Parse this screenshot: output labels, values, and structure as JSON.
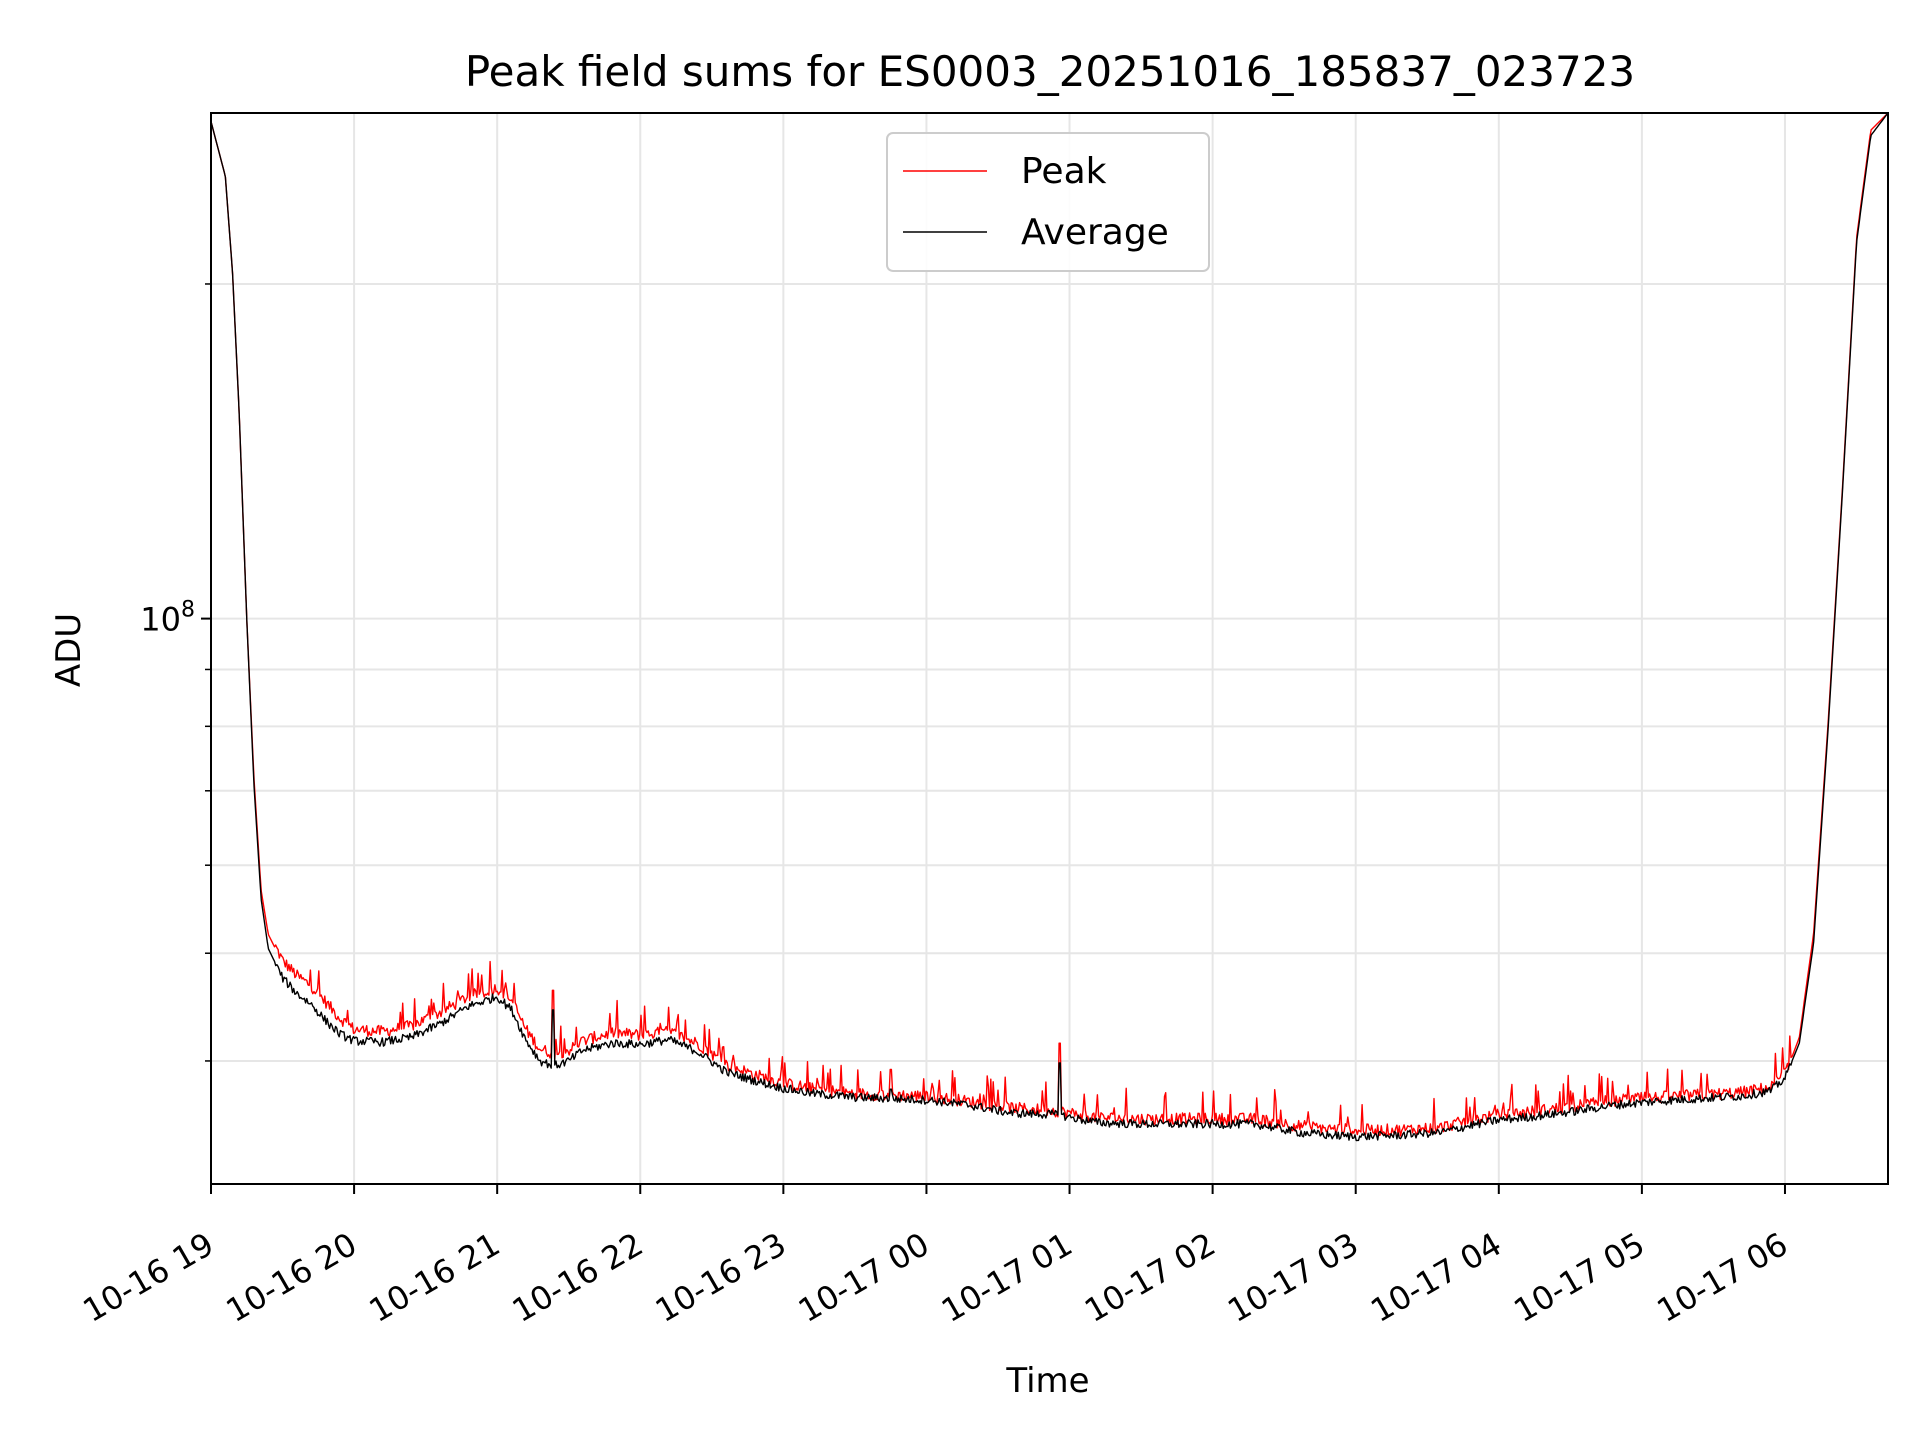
{
  "chart_data": {
    "type": "line",
    "title": "Peak field sums for ES0003_20251016_185837_023723",
    "xlabel": "Time",
    "ylabel": "ADU",
    "yscale": "log",
    "ylim": [
      31000000,
      285000000
    ],
    "xlim": [
      0,
      11.72
    ],
    "grid": true,
    "legend_position": "top-center",
    "x_tick_labels": [
      "10-16 19",
      "10-16 20",
      "10-16 21",
      "10-16 22",
      "10-16 23",
      "10-17 00",
      "10-17 01",
      "10-17 02",
      "10-17 03",
      "10-17 04",
      "10-17 05",
      "10-17 06"
    ],
    "y_major_tick": {
      "base": "10",
      "exponent": "8"
    },
    "series": [
      {
        "name": "Peak",
        "color": "#ff0000",
        "points": [
          [
            0.0,
            280000000
          ],
          [
            0.1,
            250000000
          ],
          [
            0.15,
            205000000
          ],
          [
            0.2,
            150000000
          ],
          [
            0.25,
            100000000
          ],
          [
            0.3,
            72000000
          ],
          [
            0.35,
            57000000
          ],
          [
            0.4,
            52000000
          ],
          [
            0.5,
            49000000
          ],
          [
            0.6,
            47500000
          ],
          [
            0.7,
            46500000
          ],
          [
            0.8,
            45000000
          ],
          [
            0.9,
            43500000
          ],
          [
            1.0,
            42500000
          ],
          [
            1.2,
            42300000
          ],
          [
            1.4,
            42800000
          ],
          [
            1.6,
            44000000
          ],
          [
            1.8,
            45500000
          ],
          [
            2.0,
            46300000
          ],
          [
            2.1,
            45200000
          ],
          [
            2.2,
            42500000
          ],
          [
            2.3,
            40800000
          ],
          [
            2.4,
            40400000
          ],
          [
            2.5,
            40700000
          ],
          [
            2.6,
            41500000
          ],
          [
            2.8,
            42200000
          ],
          [
            3.0,
            42000000
          ],
          [
            3.2,
            42300000
          ],
          [
            3.4,
            41300000
          ],
          [
            3.6,
            39500000
          ],
          [
            3.8,
            38700000
          ],
          [
            4.0,
            38000000
          ],
          [
            4.2,
            37600000
          ],
          [
            4.5,
            37200000
          ],
          [
            5.0,
            37000000
          ],
          [
            5.3,
            36600000
          ],
          [
            5.6,
            36100000
          ],
          [
            5.9,
            35900000
          ],
          [
            6.2,
            35400000
          ],
          [
            6.5,
            35300000
          ],
          [
            6.8,
            35300000
          ],
          [
            7.0,
            35300000
          ],
          [
            7.3,
            35300000
          ],
          [
            7.6,
            34800000
          ],
          [
            7.8,
            34600000
          ],
          [
            8.0,
            34500000
          ],
          [
            8.3,
            34500000
          ],
          [
            8.6,
            34700000
          ],
          [
            8.8,
            35200000
          ],
          [
            9.0,
            35600000
          ],
          [
            9.2,
            35800000
          ],
          [
            9.5,
            36200000
          ],
          [
            9.8,
            36700000
          ],
          [
            10.1,
            36900000
          ],
          [
            10.4,
            37100000
          ],
          [
            10.7,
            37300000
          ],
          [
            10.9,
            37700000
          ],
          [
            11.0,
            38800000
          ],
          [
            11.1,
            42000000
          ],
          [
            11.2,
            52000000
          ],
          [
            11.3,
            80000000
          ],
          [
            11.4,
            130000000
          ],
          [
            11.5,
            220000000
          ],
          [
            11.6,
            275000000
          ],
          [
            11.72,
            285000000
          ]
        ]
      },
      {
        "name": "Average",
        "color": "#000000",
        "points": [
          [
            0.0,
            280000000
          ],
          [
            0.1,
            250000000
          ],
          [
            0.15,
            205000000
          ],
          [
            0.2,
            150000000
          ],
          [
            0.25,
            100000000
          ],
          [
            0.3,
            71000000
          ],
          [
            0.35,
            56000000
          ],
          [
            0.4,
            50500000
          ],
          [
            0.5,
            47500000
          ],
          [
            0.6,
            46000000
          ],
          [
            0.7,
            45000000
          ],
          [
            0.8,
            43500000
          ],
          [
            0.9,
            42300000
          ],
          [
            1.0,
            41700000
          ],
          [
            1.2,
            41600000
          ],
          [
            1.4,
            42000000
          ],
          [
            1.6,
            43200000
          ],
          [
            1.8,
            44800000
          ],
          [
            2.0,
            45700000
          ],
          [
            2.1,
            44500000
          ],
          [
            2.2,
            41800000
          ],
          [
            2.3,
            40000000
          ],
          [
            2.4,
            39600000
          ],
          [
            2.5,
            40000000
          ],
          [
            2.6,
            40900000
          ],
          [
            2.8,
            41500000
          ],
          [
            3.0,
            41400000
          ],
          [
            3.2,
            41800000
          ],
          [
            3.4,
            40800000
          ],
          [
            3.6,
            39100000
          ],
          [
            3.8,
            38400000
          ],
          [
            4.0,
            37800000
          ],
          [
            4.2,
            37400000
          ],
          [
            4.5,
            37100000
          ],
          [
            5.0,
            36900000
          ],
          [
            5.3,
            36500000
          ],
          [
            5.6,
            35900000
          ],
          [
            5.9,
            35800000
          ],
          [
            6.2,
            35200000
          ],
          [
            6.5,
            35100000
          ],
          [
            6.8,
            35100000
          ],
          [
            7.0,
            35100000
          ],
          [
            7.3,
            35100000
          ],
          [
            7.6,
            34500000
          ],
          [
            7.8,
            34300000
          ],
          [
            8.0,
            34200000
          ],
          [
            8.3,
            34300000
          ],
          [
            8.6,
            34500000
          ],
          [
            8.8,
            35000000
          ],
          [
            9.0,
            35400000
          ],
          [
            9.2,
            35600000
          ],
          [
            9.5,
            36000000
          ],
          [
            9.8,
            36500000
          ],
          [
            10.1,
            36800000
          ],
          [
            10.4,
            37000000
          ],
          [
            10.7,
            37200000
          ],
          [
            10.9,
            37600000
          ],
          [
            11.0,
            38600000
          ],
          [
            11.1,
            41500000
          ],
          [
            11.2,
            51000000
          ],
          [
            11.3,
            79000000
          ],
          [
            11.4,
            129000000
          ],
          [
            11.5,
            218000000
          ],
          [
            11.6,
            272000000
          ],
          [
            11.72,
            285000000
          ]
        ]
      }
    ],
    "spikes": [
      {
        "x": 2.39,
        "peak": 46300000
      },
      {
        "x": 4.75,
        "peak": 39300000
      },
      {
        "x": 5.93,
        "peak": 41500000
      }
    ]
  }
}
